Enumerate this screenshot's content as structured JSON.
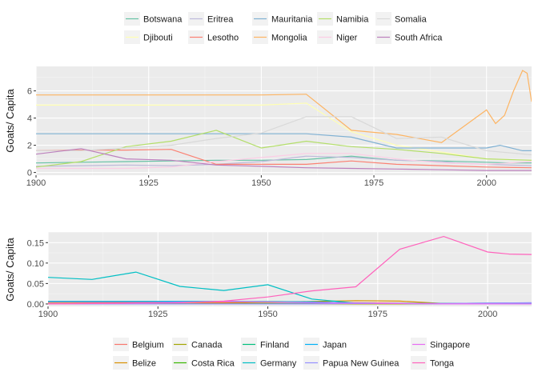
{
  "chart_data": [
    {
      "type": "line",
      "ylabel": "Goats/ Capita",
      "xlabel": "",
      "xlim": [
        1900,
        2010
      ],
      "ylim": [
        -0.2,
        7.8
      ],
      "xticks": [
        1900,
        1925,
        1950,
        1975,
        2000
      ],
      "yticks": [
        0,
        2,
        4,
        6
      ],
      "ytick_labels": [
        "0",
        "2",
        "4",
        "6"
      ],
      "grid": true,
      "legend_position": "top",
      "series": [
        {
          "name": "Botswana",
          "color": "#66c2a5",
          "x": [
            1900,
            1910,
            1920,
            1930,
            1940,
            1950,
            1960,
            1970,
            1980,
            1990,
            2000,
            2005,
            2010
          ],
          "y": [
            0.7,
            0.75,
            0.8,
            0.85,
            0.9,
            0.9,
            0.95,
            1.2,
            0.9,
            0.85,
            0.75,
            0.7,
            0.7
          ]
        },
        {
          "name": "Djibouti",
          "color": "#ffffb3",
          "x": [
            1900,
            1910,
            1920,
            1930,
            1940,
            1950,
            1960,
            1970,
            1980,
            1990,
            2000,
            2010
          ],
          "y": [
            4.95,
            4.95,
            4.95,
            4.95,
            4.95,
            4.95,
            5.1,
            3.0,
            2.0,
            1.5,
            1.0,
            0.9
          ]
        },
        {
          "name": "Eritrea",
          "color": "#bebada",
          "x": [
            1900,
            1910,
            1920,
            1930,
            1940,
            1950,
            1960,
            1970,
            1980,
            1990,
            1993,
            2000,
            2010
          ],
          "y": [
            0.45,
            0.5,
            0.55,
            0.5,
            0.6,
            0.8,
            1.2,
            1.1,
            0.9,
            0.8,
            0.7,
            0.6,
            0.5
          ]
        },
        {
          "name": "Lesotho",
          "color": "#fb8072",
          "x": [
            1900,
            1910,
            1920,
            1930,
            1940,
            1950,
            1960,
            1970,
            1980,
            1990,
            2000,
            2010
          ],
          "y": [
            1.6,
            1.65,
            1.65,
            1.7,
            0.6,
            0.6,
            0.6,
            0.85,
            0.6,
            0.5,
            0.4,
            0.35
          ]
        },
        {
          "name": "Mauritania",
          "color": "#80b1d3",
          "x": [
            1900,
            1910,
            1920,
            1930,
            1940,
            1950,
            1960,
            1970,
            1980,
            1990,
            2000,
            2003,
            2008,
            2010
          ],
          "y": [
            2.85,
            2.85,
            2.85,
            2.85,
            2.85,
            2.85,
            2.85,
            2.6,
            1.8,
            1.8,
            1.8,
            2.0,
            1.6,
            1.6
          ]
        },
        {
          "name": "Mongolia",
          "color": "#fdb462",
          "x": [
            1900,
            1910,
            1920,
            1930,
            1940,
            1950,
            1960,
            1970,
            1980,
            1990,
            2000,
            2002,
            2004,
            2006,
            2008,
            2009,
            2010
          ],
          "y": [
            5.7,
            5.7,
            5.7,
            5.7,
            5.7,
            5.7,
            5.75,
            3.1,
            2.8,
            2.2,
            4.6,
            3.6,
            4.2,
            6.0,
            7.5,
            7.3,
            5.2
          ]
        },
        {
          "name": "Namibia",
          "color": "#b3de69",
          "x": [
            1900,
            1910,
            1920,
            1930,
            1940,
            1950,
            1960,
            1970,
            1980,
            1990,
            2000,
            2010
          ],
          "y": [
            0.4,
            0.8,
            1.9,
            2.3,
            3.1,
            1.8,
            2.3,
            1.9,
            1.7,
            1.4,
            1.0,
            0.9
          ]
        },
        {
          "name": "Niger",
          "color": "#fccde5",
          "x": [
            1900,
            1910,
            1920,
            1930,
            1940,
            1950,
            1960,
            1970,
            1980,
            1990,
            2000,
            2010
          ],
          "y": [
            0.3,
            0.3,
            0.3,
            0.4,
            0.8,
            1.1,
            1.4,
            1.4,
            1.0,
            0.7,
            0.6,
            0.8
          ]
        },
        {
          "name": "Somalia",
          "color": "#d9d9d9",
          "x": [
            1900,
            1910,
            1920,
            1930,
            1940,
            1950,
            1960,
            1970,
            1980,
            1990,
            2000,
            2010
          ],
          "y": [
            1.6,
            1.6,
            1.8,
            2.0,
            2.5,
            2.9,
            4.1,
            4.1,
            2.5,
            2.6,
            1.6,
            1.3
          ]
        },
        {
          "name": "South Africa",
          "color": "#bc80bd",
          "x": [
            1900,
            1910,
            1920,
            1930,
            1940,
            1950,
            1960,
            1970,
            1980,
            1990,
            2000,
            2010
          ],
          "y": [
            1.35,
            1.75,
            1.0,
            0.9,
            0.55,
            0.45,
            0.35,
            0.3,
            0.25,
            0.2,
            0.15,
            0.15
          ]
        }
      ]
    },
    {
      "type": "line",
      "ylabel": "Goats/ Capita",
      "xlabel": "",
      "xlim": [
        1900,
        2010
      ],
      "ylim": [
        -0.006,
        0.176
      ],
      "xticks": [
        1900,
        1925,
        1950,
        1975,
        2000
      ],
      "yticks": [
        0,
        0.05,
        0.1,
        0.15
      ],
      "ytick_labels": [
        "0.00",
        "0.05",
        "0.10",
        "0.15"
      ],
      "grid": true,
      "legend_position": "bottom",
      "series": [
        {
          "name": "Belgium",
          "color": "#f8766d",
          "x": [
            1900,
            1910,
            1920,
            1930,
            1940,
            1950,
            1960,
            1970,
            1980,
            1990,
            2000,
            2010
          ],
          "y": [
            0.004,
            0.004,
            0.004,
            0.004,
            0.004,
            0.004,
            0.004,
            0.003,
            0.002,
            0.001,
            0.001,
            0.001
          ]
        },
        {
          "name": "Belize",
          "color": "#d89000",
          "x": [
            1900,
            1910,
            1920,
            1930,
            1940,
            1950,
            1960,
            1970,
            1980,
            1990,
            2000,
            2010
          ],
          "y": [
            0.001,
            0.001,
            0.001,
            0.001,
            0.002,
            0.004,
            0.006,
            0.008,
            0.007,
            0.001,
            0.001,
            0.001
          ]
        },
        {
          "name": "Canada",
          "color": "#a3a500",
          "x": [
            1900,
            1910,
            1920,
            1930,
            1940,
            1950,
            1960,
            1970,
            1980,
            1990,
            2000,
            2010
          ],
          "y": [
            0.0,
            0.0,
            0.0,
            0.0,
            0.0,
            0.0,
            0.0,
            0.0,
            0.0,
            0.0,
            0.001,
            0.001
          ]
        },
        {
          "name": "Costa Rica",
          "color": "#39b600",
          "x": [
            1900,
            1910,
            1920,
            1930,
            1940,
            1950,
            1960,
            1970,
            1980,
            1990,
            2000,
            2010
          ],
          "y": [
            0.0,
            0.0,
            0.0,
            0.0,
            0.0,
            0.001,
            0.001,
            0.001,
            0.001,
            0.001,
            0.001,
            0.001
          ]
        },
        {
          "name": "Finland",
          "color": "#00bf7d",
          "x": [
            1900,
            1910,
            1920,
            1930,
            1940,
            1950,
            1960,
            1970,
            1980,
            1990,
            2000,
            2010
          ],
          "y": [
            0.006,
            0.006,
            0.006,
            0.006,
            0.006,
            0.006,
            0.005,
            0.002,
            0.001,
            0.001,
            0.001,
            0.001
          ]
        },
        {
          "name": "Germany",
          "color": "#00bfc4",
          "x": [
            1900,
            1910,
            1920,
            1930,
            1940,
            1950,
            1960,
            1970,
            1980,
            1990,
            2000,
            2010
          ],
          "y": [
            0.065,
            0.06,
            0.078,
            0.043,
            0.033,
            0.047,
            0.012,
            0.002,
            0.001,
            0.001,
            0.002,
            0.002
          ]
        },
        {
          "name": "Japan",
          "color": "#00b0f6",
          "x": [
            1900,
            1910,
            1920,
            1930,
            1940,
            1950,
            1960,
            1970,
            1980,
            1990,
            2000,
            2010
          ],
          "y": [
            0.006,
            0.006,
            0.006,
            0.006,
            0.006,
            0.005,
            0.005,
            0.002,
            0.001,
            0.0,
            0.0,
            0.0
          ]
        },
        {
          "name": "Papua New Guinea",
          "color": "#9590ff",
          "x": [
            1900,
            1910,
            1920,
            1930,
            1940,
            1950,
            1960,
            1970,
            1980,
            1990,
            2000,
            2010
          ],
          "y": [
            0.0,
            0.0,
            0.0,
            0.0,
            0.0,
            0.0,
            0.0,
            0.001,
            0.001,
            0.001,
            0.002,
            0.003
          ]
        },
        {
          "name": "Singapore",
          "color": "#e76bf3",
          "x": [
            1900,
            1910,
            1920,
            1930,
            1940,
            1950,
            1960,
            1970,
            1980,
            1990,
            2000,
            2010
          ],
          "y": [
            0.0,
            0.001,
            0.002,
            0.004,
            0.006,
            0.005,
            0.003,
            0.002,
            0.001,
            0.0,
            0.0,
            0.0
          ]
        },
        {
          "name": "Tonga",
          "color": "#ff62bc",
          "x": [
            1900,
            1910,
            1920,
            1930,
            1940,
            1950,
            1960,
            1970,
            1980,
            1990,
            2000,
            2005,
            2010
          ],
          "y": [
            0.0,
            0.001,
            0.002,
            0.003,
            0.007,
            0.017,
            0.032,
            0.042,
            0.134,
            0.165,
            0.127,
            0.122,
            0.121
          ]
        }
      ]
    }
  ]
}
